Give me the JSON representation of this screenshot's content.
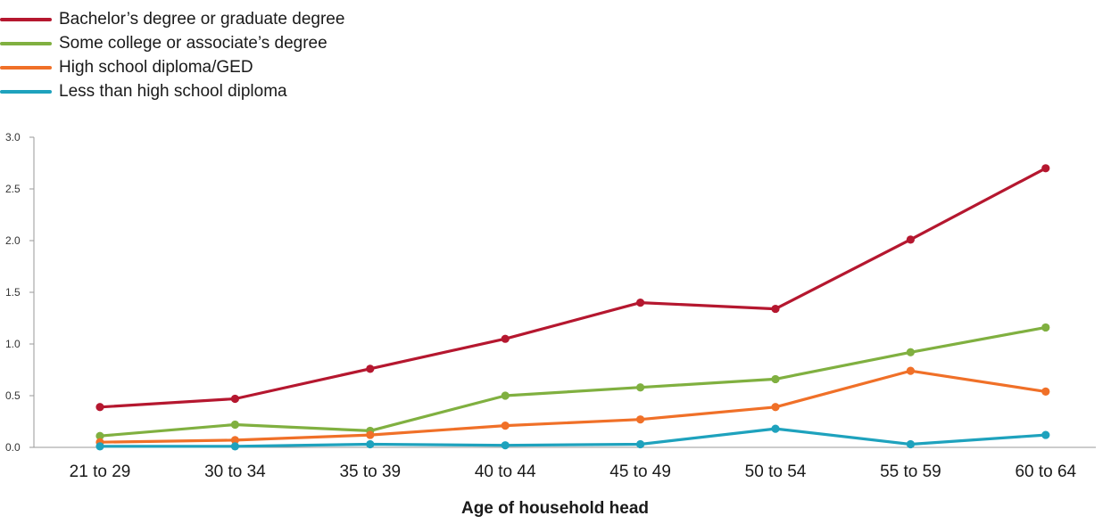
{
  "chart_data": {
    "type": "line",
    "title": "",
    "xlabel": "Age of household head",
    "ylabel": "",
    "ylim": [
      0,
      3.0
    ],
    "yticks": [
      "0.0",
      "0.5",
      "1.0",
      "1.5",
      "2.0",
      "2.5",
      "3.0"
    ],
    "categories": [
      "21 to 29",
      "30 to 34",
      "35 to 39",
      "40 to 44",
      "45 to 49",
      "50 to 54",
      "55 to 59",
      "60 to 64"
    ],
    "legend_position": "top-left",
    "grid": false,
    "series": [
      {
        "name": "Bachelor’s degree or graduate degree",
        "color": "#b5172f",
        "values": [
          0.39,
          0.47,
          0.76,
          1.05,
          1.4,
          1.34,
          2.01,
          2.7
        ]
      },
      {
        "name": "Some college or associate’s degree",
        "color": "#80b040",
        "values": [
          0.11,
          0.22,
          0.16,
          0.5,
          0.58,
          0.66,
          0.92,
          1.16
        ]
      },
      {
        "name": "High school diploma/GED",
        "color": "#f07028",
        "values": [
          0.05,
          0.07,
          0.12,
          0.21,
          0.27,
          0.39,
          0.74,
          0.54
        ]
      },
      {
        "name": "Less than high school diploma",
        "color": "#1ea2bd",
        "values": [
          0.01,
          0.01,
          0.03,
          0.02,
          0.03,
          0.18,
          0.03,
          0.12
        ]
      }
    ]
  }
}
